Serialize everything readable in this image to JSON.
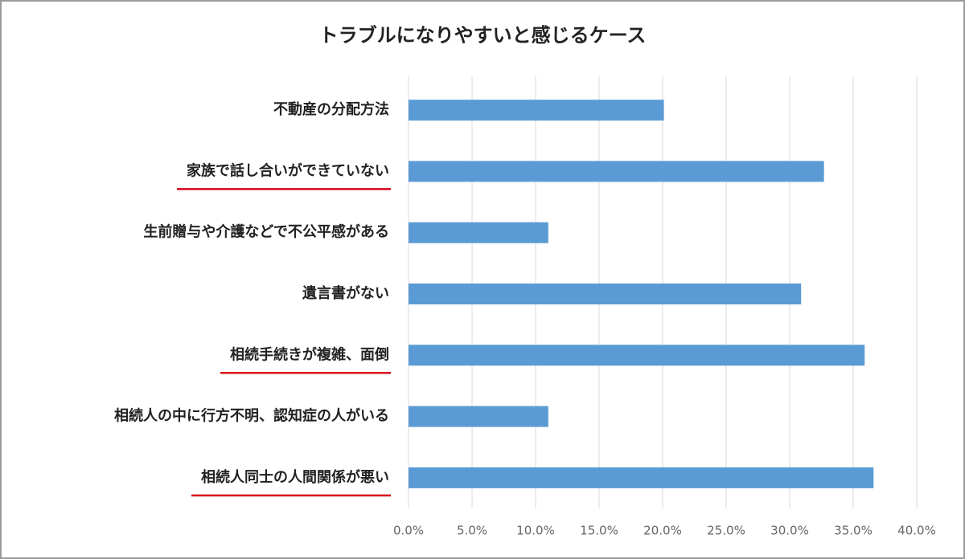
{
  "chart_data": {
    "type": "bar",
    "orientation": "horizontal",
    "title": "トラブルになりやすいと感じるケース",
    "categories": [
      "不動産の分配方法",
      "家族で話し合いができていない",
      "生前贈与や介護などで不公平感がある",
      "遺言書がない",
      "相続手続きが複雑、面倒",
      "相続人の中に行方不明、認知症の人がいる",
      "相続人同士の人間関係が悪い"
    ],
    "values": [
      20.1,
      32.7,
      11.0,
      30.9,
      35.9,
      11.0,
      36.6
    ],
    "color": "#5b9bd5",
    "underline": [
      false,
      true,
      false,
      false,
      true,
      false,
      true
    ],
    "underline_color": "#d9001b",
    "xlim": [
      0,
      40
    ],
    "xticks": [
      {
        "value": 0,
        "label": "0.0%"
      },
      {
        "value": 5,
        "label": "5.0%"
      },
      {
        "value": 10,
        "label": "10.0%"
      },
      {
        "value": 15,
        "label": "15.0%"
      },
      {
        "value": 20,
        "label": "20.0%"
      },
      {
        "value": 25,
        "label": "25.0%"
      },
      {
        "value": 30,
        "label": "30.0%"
      },
      {
        "value": 35,
        "label": "35.0%"
      },
      {
        "value": 40,
        "label": "40.0%"
      }
    ],
    "grid": true
  }
}
